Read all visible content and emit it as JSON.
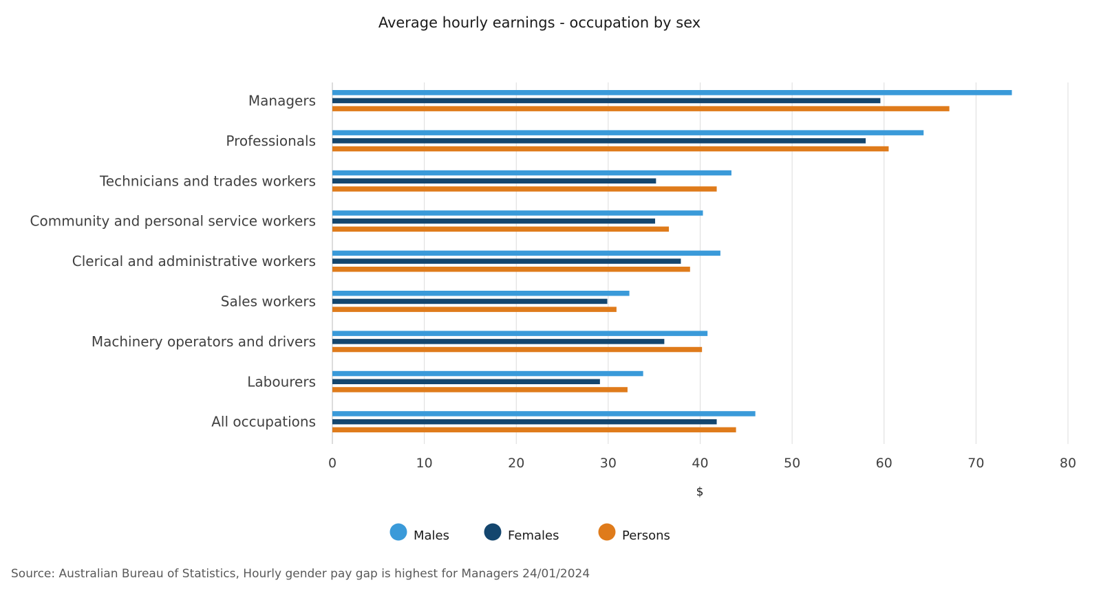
{
  "chart_data": {
    "type": "bar",
    "orientation": "horizontal",
    "title": "Average hourly earnings - occupation by sex",
    "xlabel": "$",
    "ylabel": "",
    "xlim": [
      0,
      80
    ],
    "ticks": [
      0,
      10,
      20,
      30,
      40,
      50,
      60,
      70,
      80
    ],
    "categories": [
      "Managers",
      "Professionals",
      "Technicians and trades workers",
      "Community and personal service workers",
      "Clerical and administrative workers",
      "Sales workers",
      "Machinery operators and drivers",
      "Labourers",
      "All occupations"
    ],
    "series": [
      {
        "name": "Males",
        "color": "#3a9ad9",
        "values": [
          73.9,
          64.3,
          43.4,
          40.3,
          42.2,
          32.3,
          40.8,
          33.8,
          46.0
        ]
      },
      {
        "name": "Females",
        "color": "#14466e",
        "values": [
          59.6,
          58.0,
          35.2,
          35.1,
          37.9,
          29.9,
          36.1,
          29.1,
          41.8
        ]
      },
      {
        "name": "Persons",
        "color": "#df7b1b",
        "values": [
          67.1,
          60.5,
          41.8,
          36.6,
          38.9,
          30.9,
          40.2,
          32.1,
          43.9
        ]
      }
    ],
    "grid": true,
    "legend_position": "bottom-center",
    "source": "Source: Australian Bureau of Statistics, Hourly gender pay gap is highest for Managers 24/01/2024"
  }
}
